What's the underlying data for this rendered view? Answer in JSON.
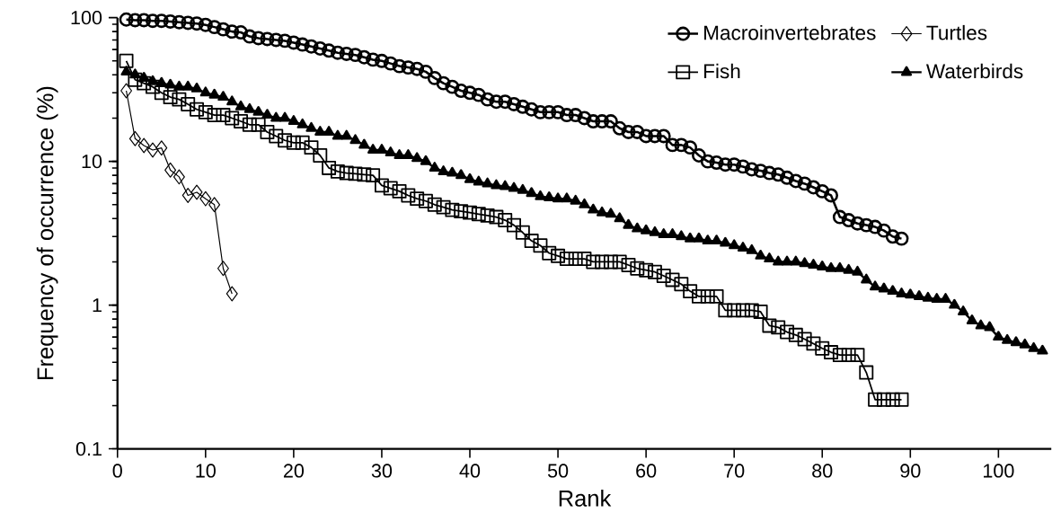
{
  "chart_data": {
    "type": "line",
    "xlabel": "Rank",
    "ylabel": "Frequency of occurrence (%)",
    "log": "y",
    "xlim": [
      0,
      106
    ],
    "xticks": [
      0,
      10,
      20,
      30,
      40,
      50,
      60,
      70,
      80,
      90,
      100
    ],
    "ylim": [
      0.1,
      100
    ],
    "yticks": [
      0.1,
      1,
      10,
      100
    ],
    "legend": "top right",
    "grid": false,
    "line_style": "solid",
    "series": [
      {
        "name": "Macroinvertebrates",
        "color": "#000000",
        "marker": "circle",
        "x": [
          1,
          2,
          3,
          4,
          5,
          6,
          7,
          8,
          9,
          10,
          11,
          12,
          13,
          14,
          15,
          16,
          17,
          18,
          19,
          20,
          21,
          22,
          23,
          24,
          25,
          26,
          27,
          28,
          29,
          30,
          31,
          32,
          33,
          34,
          35,
          36,
          37,
          38,
          39,
          40,
          41,
          42,
          43,
          44,
          45,
          46,
          47,
          48,
          49,
          50,
          51,
          52,
          53,
          54,
          55,
          56,
          57,
          58,
          59,
          60,
          61,
          62,
          63,
          64,
          65,
          66,
          67,
          68,
          69,
          70,
          71,
          72,
          73,
          74,
          75,
          76,
          77,
          78,
          79,
          80,
          81,
          82,
          83,
          84,
          85,
          86,
          87,
          88,
          89
        ],
        "values": [
          97,
          96,
          96,
          95,
          95,
          94,
          93,
          92,
          91,
          89,
          86,
          83,
          80,
          79,
          74,
          72,
          71,
          70,
          69,
          67,
          65,
          63,
          61,
          59,
          57,
          56,
          55,
          53,
          51,
          50,
          48,
          46,
          45,
          44,
          42,
          38,
          35,
          33,
          31,
          30,
          29,
          27,
          26,
          26,
          25,
          24,
          23,
          22,
          22,
          22,
          21,
          21,
          20,
          19,
          19,
          19,
          17,
          16,
          16,
          15,
          15,
          15,
          13,
          13,
          12.5,
          11,
          10,
          9.8,
          9.5,
          9.5,
          9.2,
          8.8,
          8.6,
          8.3,
          8.1,
          7.7,
          7.3,
          7,
          6.6,
          6.2,
          5.8,
          4.1,
          3.9,
          3.7,
          3.6,
          3.5,
          3.3,
          3,
          2.9
        ]
      },
      {
        "name": "Fish",
        "color": "#000000",
        "marker": "square",
        "x": [
          1,
          2,
          3,
          4,
          5,
          6,
          7,
          8,
          9,
          10,
          11,
          12,
          13,
          14,
          15,
          16,
          17,
          18,
          19,
          20,
          21,
          22,
          23,
          24,
          25,
          26,
          27,
          28,
          29,
          30,
          31,
          32,
          33,
          34,
          35,
          36,
          37,
          38,
          39,
          40,
          41,
          42,
          43,
          44,
          45,
          46,
          47,
          48,
          49,
          50,
          51,
          52,
          53,
          54,
          55,
          56,
          57,
          58,
          59,
          60,
          61,
          62,
          63,
          64,
          65,
          66,
          67,
          68,
          69,
          70,
          71,
          72,
          73,
          74,
          75,
          76,
          77,
          78,
          79,
          80,
          81,
          82,
          83,
          84,
          85,
          86,
          87,
          88,
          89
        ],
        "values": [
          50,
          37,
          35,
          33,
          30,
          28,
          27,
          25,
          23,
          22,
          21,
          21,
          20,
          19,
          18,
          18,
          16,
          15,
          14,
          13.5,
          13.5,
          12.5,
          11,
          9,
          8.5,
          8.3,
          8.2,
          8.1,
          8,
          6.8,
          6.5,
          6.2,
          5.8,
          5.5,
          5.3,
          5,
          4.8,
          4.6,
          4.5,
          4.4,
          4.3,
          4.2,
          4.1,
          3.9,
          3.6,
          3.2,
          2.8,
          2.6,
          2.3,
          2.2,
          2.1,
          2.1,
          2.1,
          2,
          2,
          2,
          2,
          1.9,
          1.8,
          1.75,
          1.7,
          1.6,
          1.5,
          1.4,
          1.25,
          1.15,
          1.15,
          1.15,
          0.92,
          0.92,
          0.92,
          0.92,
          0.9,
          0.72,
          0.7,
          0.65,
          0.62,
          0.58,
          0.54,
          0.5,
          0.47,
          0.45,
          0.45,
          0.45,
          0.34,
          0.22,
          0.22,
          0.22,
          0.22
        ]
      },
      {
        "name": "Turtles",
        "color": "#000000",
        "marker": "diamond",
        "x": [
          1,
          2,
          3,
          4,
          5,
          6,
          7,
          8,
          9,
          10,
          11,
          12,
          13
        ],
        "values": [
          31,
          14.4,
          12.9,
          12,
          12.4,
          8.7,
          7.8,
          5.8,
          6.1,
          5.5,
          5,
          1.8,
          1.2
        ]
      },
      {
        "name": "Waterbirds",
        "color": "#000000",
        "marker": "triangle",
        "x": [
          1,
          2,
          3,
          4,
          5,
          6,
          7,
          8,
          9,
          10,
          11,
          12,
          13,
          14,
          15,
          16,
          17,
          18,
          19,
          20,
          21,
          22,
          23,
          24,
          25,
          26,
          27,
          28,
          29,
          30,
          31,
          32,
          33,
          34,
          35,
          36,
          37,
          38,
          39,
          40,
          41,
          42,
          43,
          44,
          45,
          46,
          47,
          48,
          49,
          50,
          51,
          52,
          53,
          54,
          55,
          56,
          57,
          58,
          59,
          60,
          61,
          62,
          63,
          64,
          65,
          66,
          67,
          68,
          69,
          70,
          71,
          72,
          73,
          74,
          75,
          76,
          77,
          78,
          79,
          80,
          81,
          82,
          83,
          84,
          85,
          86,
          87,
          88,
          89,
          90,
          91,
          92,
          93,
          94,
          95,
          96,
          97,
          98,
          99,
          100,
          101,
          102,
          103,
          104,
          105
        ],
        "values": [
          42,
          40,
          38,
          36,
          35,
          34,
          33,
          33,
          32,
          30,
          29,
          28,
          26,
          24,
          23,
          22,
          21,
          20,
          20,
          19,
          18,
          17,
          16,
          16,
          15,
          15,
          14,
          13,
          12,
          12,
          11.5,
          11,
          11,
          10.5,
          10,
          9,
          8.5,
          8.3,
          8,
          7.5,
          7.2,
          7,
          6.8,
          6.7,
          6.5,
          6.3,
          6,
          5.7,
          5.6,
          5.5,
          5.5,
          5.3,
          5,
          4.6,
          4.4,
          4.3,
          4,
          3.6,
          3.4,
          3.3,
          3.2,
          3.1,
          3.1,
          3,
          2.9,
          2.9,
          2.8,
          2.8,
          2.7,
          2.6,
          2.5,
          2.4,
          2.2,
          2.1,
          2,
          2,
          2,
          1.95,
          1.9,
          1.85,
          1.8,
          1.8,
          1.75,
          1.7,
          1.5,
          1.34,
          1.3,
          1.25,
          1.2,
          1.18,
          1.15,
          1.12,
          1.1,
          1.1,
          1,
          0.9,
          0.78,
          0.72,
          0.7,
          0.6,
          0.57,
          0.55,
          0.53,
          0.5,
          0.48
        ]
      }
    ]
  }
}
